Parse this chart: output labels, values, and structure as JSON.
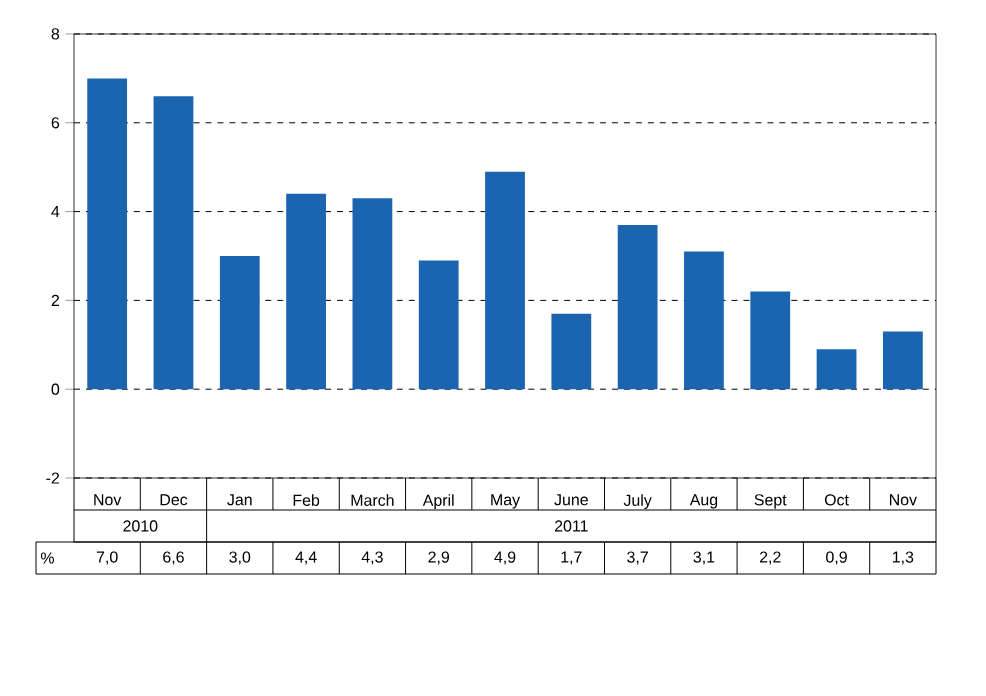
{
  "chart_data": {
    "type": "bar",
    "categories": [
      "Nov",
      "Dec",
      "Jan",
      "Feb",
      "March",
      "April",
      "May",
      "June",
      "July",
      "Aug",
      "Sept",
      "Oct",
      "Nov"
    ],
    "values": [
      7.0,
      6.6,
      3.0,
      4.4,
      4.3,
      2.9,
      4.9,
      1.7,
      3.7,
      3.1,
      2.2,
      0.9,
      1.3
    ],
    "value_labels": [
      "7,0",
      "6,6",
      "3,0",
      "4,4",
      "4,3",
      "2,9",
      "4,9",
      "1,7",
      "3,7",
      "3,1",
      "2,2",
      "0,9",
      "1,3"
    ],
    "color": "#1a64b0",
    "ylabel": "%",
    "annotations": [
      "2010",
      "2011"
    ],
    "ylim": [
      -2,
      8
    ],
    "yticks": [
      -2,
      0,
      2,
      4,
      6,
      8
    ],
    "grid": "y"
  }
}
